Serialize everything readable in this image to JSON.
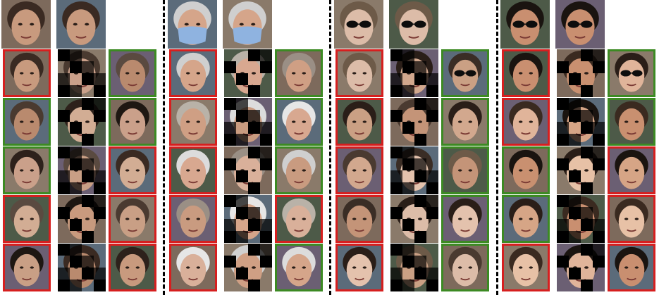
{
  "colors": {
    "match_border": "#3c8a23",
    "nonmatch_border": "#d61f1f",
    "separator": "#000000"
  },
  "panels": [
    {
      "query_variant": "clean",
      "occlusion": "none",
      "col1_borders": [
        "red",
        "green",
        "green",
        "red",
        "red"
      ],
      "col3_borders": [
        "green",
        "green",
        "red",
        "red",
        "red"
      ],
      "skin": [
        "#c89a7e",
        "#b98a6e",
        "#caa08a",
        "#d2ad94",
        "#c99f85"
      ],
      "hair": [
        "#3a2a22",
        "#4a3a30",
        "#2d211b",
        "#5a4a40",
        "#1e1712"
      ]
    },
    {
      "query_variant": "surgical-mask",
      "occlusion": "mask",
      "col1_borders": [
        "red",
        "red",
        "red",
        "red",
        "red"
      ],
      "col3_borders": [
        "green",
        "green",
        "green",
        "red",
        "green"
      ],
      "skin": [
        "#d5a58a",
        "#cf9f84",
        "#d8a890",
        "#c99b80",
        "#d9b09a"
      ],
      "hair": [
        "#cfcfcf",
        "#b9b2a8",
        "#dcdcdc",
        "#9a8f85",
        "#e6e6e6"
      ]
    },
    {
      "query_variant": "sunglasses",
      "occlusion": "sunglasses",
      "col1_borders": [
        "red",
        "red",
        "red",
        "red",
        "red"
      ],
      "col3_borders": [
        "green",
        "green",
        "green",
        "green",
        "green"
      ],
      "skin": [
        "#dcbca8",
        "#caa084",
        "#d2a88e",
        "#c49478",
        "#e4c2ad"
      ],
      "hair": [
        "#6d5a48",
        "#2a1e18",
        "#4a3a30",
        "#3a2d25",
        "#2a1e18"
      ]
    },
    {
      "query_variant": "sunglasses",
      "occlusion": "sunglasses",
      "col1_borders": [
        "red",
        "red",
        "green",
        "green",
        "red"
      ],
      "col3_borders": [
        "green",
        "green",
        "red",
        "red",
        "red"
      ],
      "skin": [
        "#c98f70",
        "#e0b49a",
        "#c99070",
        "#d6a586",
        "#e7c1a6"
      ],
      "hair": [
        "#1a1410",
        "#3a2a20",
        "#1a1410",
        "#2a1e18",
        "#3a2a20"
      ]
    }
  ]
}
